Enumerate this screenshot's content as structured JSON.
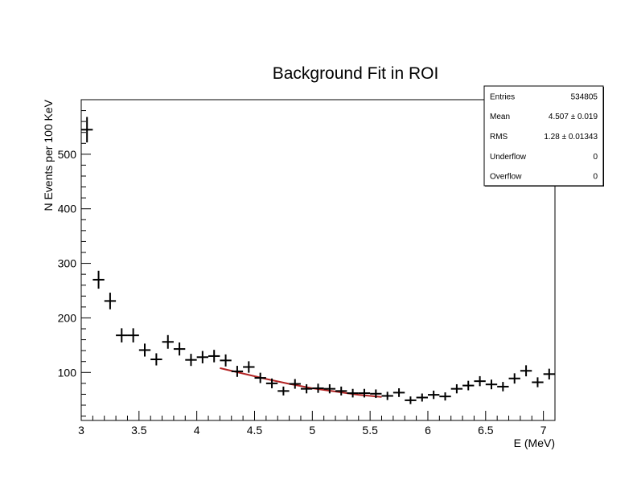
{
  "chart_data": {
    "type": "scatter",
    "title": "Background Fit in ROI",
    "xlabel": "E (MeV)",
    "ylabel": "N Events per 100 KeV",
    "xlim": [
      3.0,
      7.1
    ],
    "ylim": [
      12,
      600
    ],
    "x_ticks": [
      3,
      3.5,
      4,
      4.5,
      5,
      5.5,
      6,
      6.5,
      7
    ],
    "x_tick_labels": [
      "3",
      "3.5",
      "4",
      "4.5",
      "5",
      "5.5",
      "6",
      "6.5",
      "7"
    ],
    "y_ticks": [
      100,
      200,
      300,
      400,
      500
    ],
    "y_tick_labels": [
      "100",
      "200",
      "300",
      "400",
      "500"
    ],
    "bin_width": 0.1,
    "series": [
      {
        "kind": "histogram_points_with_error_bars",
        "color": "#000000",
        "x": [
          3.05,
          3.15,
          3.25,
          3.35,
          3.45,
          3.55,
          3.65,
          3.75,
          3.85,
          3.95,
          4.05,
          4.15,
          4.25,
          4.35,
          4.45,
          4.55,
          4.65,
          4.75,
          4.85,
          4.95,
          5.05,
          5.15,
          5.25,
          5.35,
          5.45,
          5.55,
          5.65,
          5.75,
          5.85,
          5.95,
          6.05,
          6.15,
          6.25,
          6.35,
          6.45,
          6.55,
          6.65,
          6.75,
          6.85,
          6.95,
          7.05
        ],
        "y": [
          545,
          270,
          231,
          168,
          168,
          141,
          124,
          156,
          143,
          123,
          128,
          130,
          122,
          102,
          110,
          90,
          80,
          66,
          79,
          70,
          71,
          70,
          66,
          62,
          62,
          61,
          57,
          63,
          49,
          54,
          59,
          56,
          70,
          76,
          84,
          78,
          74,
          89,
          103,
          82,
          97
        ]
      },
      {
        "kind": "fit_curve",
        "color": "#b22222",
        "x": [
          4.2,
          4.4,
          4.6,
          4.8,
          5.0,
          5.2,
          5.4,
          5.6
        ],
        "y": [
          108,
          98,
          88,
          79,
          71,
          65,
          59,
          55
        ]
      }
    ],
    "stats_box": {
      "rows": [
        {
          "label": "Entries",
          "value": "534805"
        },
        {
          "label": "Mean",
          "value": "4.507 ±  0.019"
        },
        {
          "label": "RMS",
          "value": "1.28 ± 0.01343"
        },
        {
          "label": "Underflow",
          "value": "0"
        },
        {
          "label": "Overflow",
          "value": "0"
        }
      ]
    },
    "grid": false,
    "legend": "none"
  }
}
